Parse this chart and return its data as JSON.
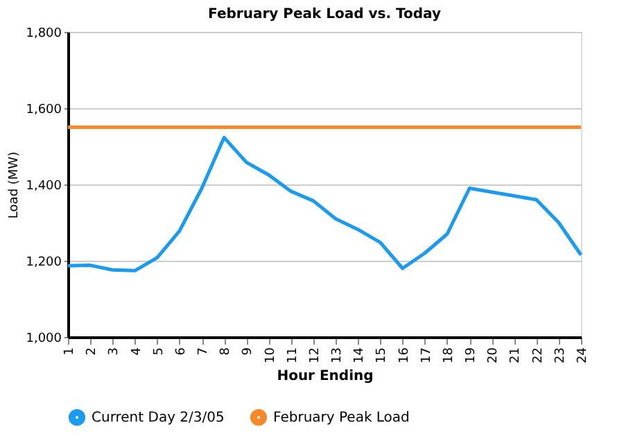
{
  "chart_data": {
    "type": "line",
    "title": "February Peak Load vs. Today",
    "xlabel": "Hour Ending",
    "ylabel": "Load (MW)",
    "categories": [
      "1",
      "2",
      "3",
      "4",
      "5",
      "6",
      "7",
      "8",
      "9",
      "10",
      "11",
      "12",
      "13",
      "14",
      "15",
      "16",
      "17",
      "18",
      "19",
      "20",
      "21",
      "22",
      "23",
      "24"
    ],
    "series": [
      {
        "name": "Current Day 2/3/05",
        "color": "#1a9bf0",
        "values": [
          1187,
          1188,
          1176,
          1174,
          1208,
          1278,
          1390,
          1523,
          1458,
          1425,
          1382,
          1357,
          1310,
          1282,
          1248,
          1180,
          1220,
          1270,
          1390,
          1380,
          1370,
          1360,
          1300,
          1215
        ]
      },
      {
        "name": "February Peak Load",
        "color": "#f7892a",
        "values": [
          1550,
          1550,
          1550,
          1550,
          1550,
          1550,
          1550,
          1550,
          1550,
          1550,
          1550,
          1550,
          1550,
          1550,
          1550,
          1550,
          1550,
          1550,
          1550,
          1550,
          1550,
          1550,
          1550,
          1550
        ]
      }
    ],
    "ylim": [
      1000,
      1800
    ],
    "yticks": [
      {
        "value": 1000,
        "label": "1,000"
      },
      {
        "value": 1200,
        "label": "1,200"
      },
      {
        "value": 1400,
        "label": "1,400"
      },
      {
        "value": 1600,
        "label": "1,600"
      },
      {
        "value": 1800,
        "label": "1,800"
      }
    ],
    "grid": "y",
    "legend": "bottom",
    "marker": "none",
    "line_style": "solid"
  }
}
